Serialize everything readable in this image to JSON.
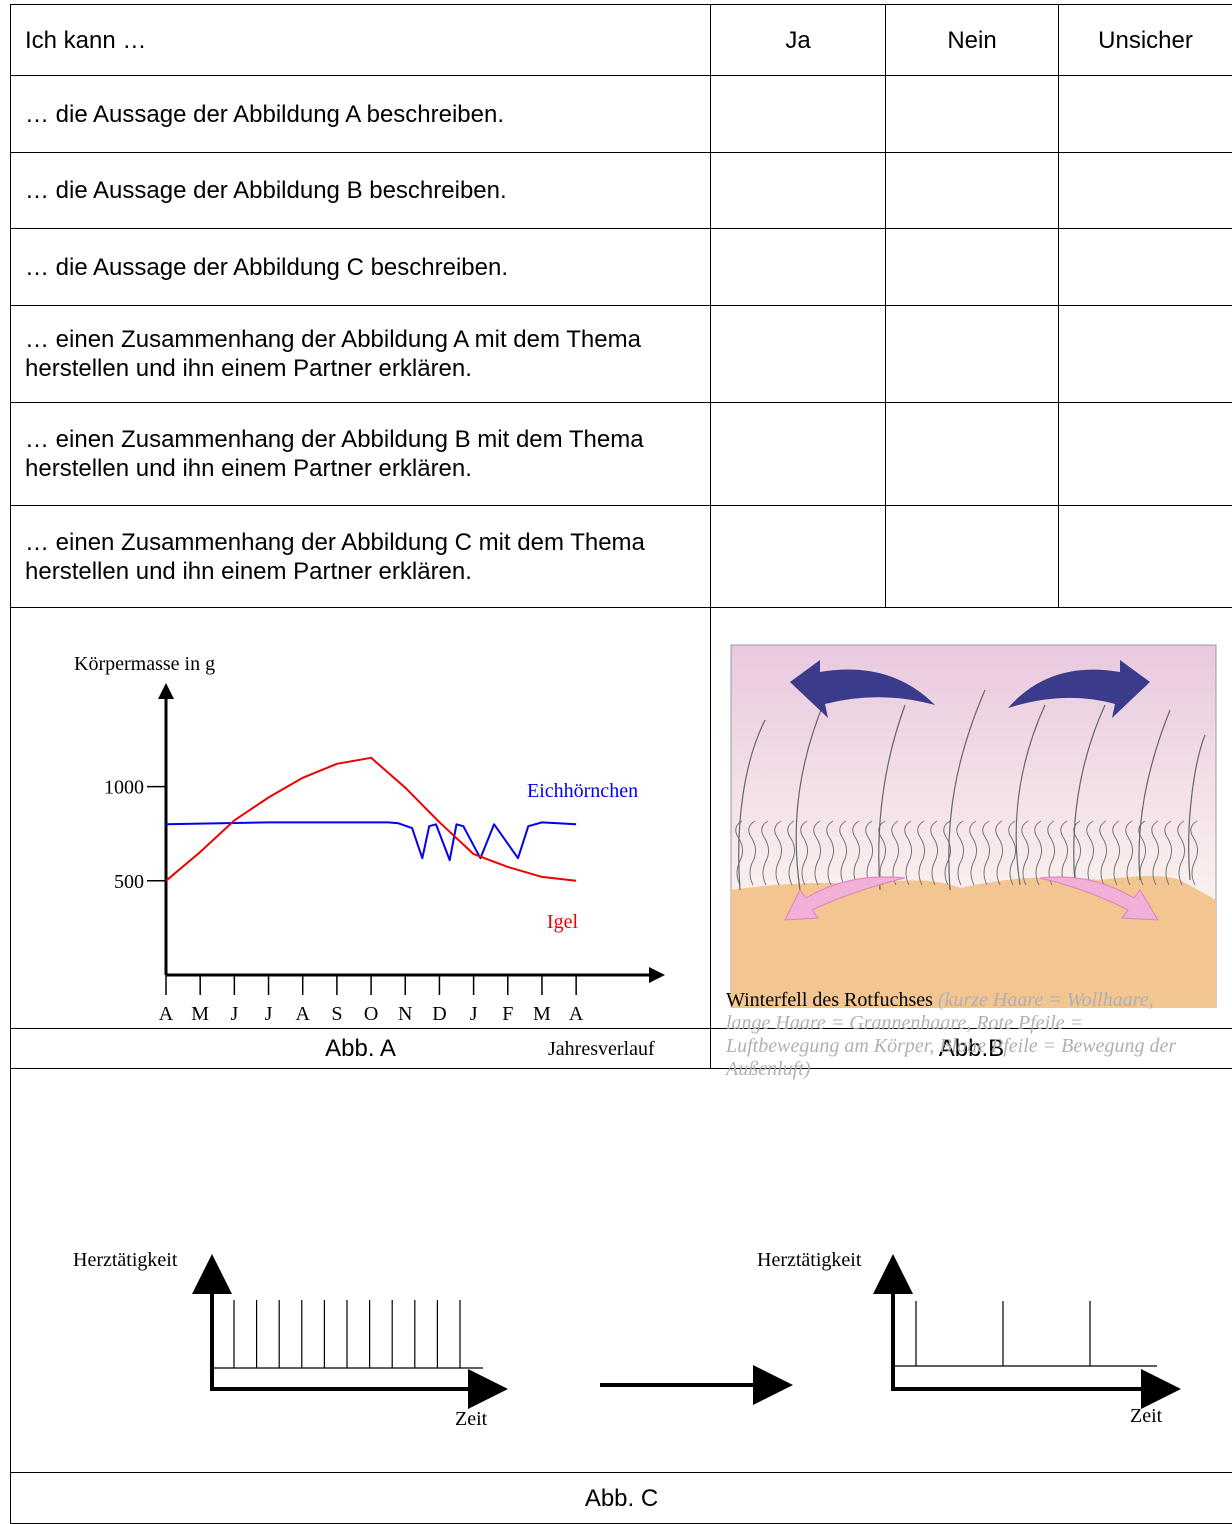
{
  "table": {
    "header": [
      "Ich kann …",
      "Ja",
      "Nein",
      "Unsicher"
    ],
    "rows": [
      [
        "… die Aussage der Abbildung A beschreiben."
      ],
      [
        "… die Aussage der Abbildung B beschreiben."
      ],
      [
        "… die Aussage der Abbildung C beschreiben."
      ],
      [
        "… einen Zusammenhang der Abbildung A mit dem Thema herstellen und ihn einem Partner erklären."
      ],
      [
        "… einen Zusammenhang der Abbildung B mit dem Thema herstellen und ihn einem Partner erklären."
      ],
      [
        "… einen Zusammenhang der Abbildung C mit dem Thema herstellen und ihn einem Partner erklären."
      ]
    ]
  },
  "chart_data": {
    "type": "line",
    "y_label": "Körpermasse in g",
    "x_label": "Jahresverlauf",
    "xlim": [
      0,
      14.6
    ],
    "xticks": [
      {
        "value": 0,
        "label": "A"
      },
      {
        "value": 1,
        "label": "M"
      },
      {
        "value": 2,
        "label": "J"
      },
      {
        "value": 3,
        "label": "J"
      },
      {
        "value": 4,
        "label": "A"
      },
      {
        "value": 5,
        "label": "S"
      },
      {
        "value": 6,
        "label": "O"
      },
      {
        "value": 7,
        "label": "N"
      },
      {
        "value": 8,
        "label": "D"
      },
      {
        "value": 9,
        "label": "J"
      },
      {
        "value": 10,
        "label": "F"
      },
      {
        "value": 11,
        "label": "M"
      },
      {
        "value": 12,
        "label": "A"
      }
    ],
    "ylim": [
      0,
      1550
    ],
    "yticks": [
      500,
      1000
    ],
    "series": [
      {
        "name": "Eichhörnchen",
        "color": "#0000ee",
        "x": [
          0,
          3,
          6.5,
          6.8,
          7.2,
          7.5,
          7.7,
          7.9,
          8.3,
          8.5,
          8.7,
          9.2,
          9.6,
          10.3,
          10.6,
          11,
          12
        ],
        "values": [
          800,
          810,
          810,
          805,
          780,
          620,
          790,
          800,
          610,
          800,
          790,
          620,
          800,
          620,
          790,
          810,
          800
        ]
      },
      {
        "name": "Igel",
        "color": "#ee0000",
        "x": [
          0,
          1,
          2,
          3,
          4,
          5,
          6,
          7,
          8,
          9,
          10,
          11,
          12
        ],
        "values": [
          500,
          653,
          821,
          942,
          1047,
          1121,
          1153,
          995,
          811,
          642,
          574,
          521,
          500
        ]
      }
    ]
  },
  "figure_b": {
    "caption": "Winterfell des Rotfuchses",
    "note": "(kurze Haare = Wollhaare, lange Haare = Grannenhaare, Rote Pfeile = Luftbewegung  am Körper, Blaue Pfeile = Bewegung der Außenluft)"
  },
  "figure_c": {
    "y_label": "Herztätigkeit",
    "x_label": "Zeit"
  },
  "captions": [
    "Abb. A",
    "Abb.B",
    "Abb. C"
  ]
}
